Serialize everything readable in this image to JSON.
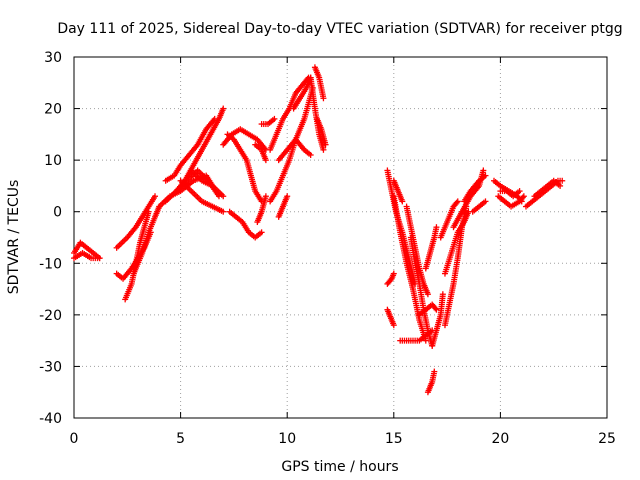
{
  "chart_data": {
    "type": "scatter",
    "title": "Day 111 of 2025, Sidereal Day-to-day VTEC variation (SDTVAR) for receiver ptgg",
    "xlabel": "GPS time / hours",
    "ylabel": "SDTVAR / TECUs",
    "xlim": [
      0,
      25
    ],
    "ylim": [
      -40,
      30
    ],
    "xticks": [
      0,
      5,
      10,
      15,
      20,
      25
    ],
    "yticks": [
      -40,
      -30,
      -20,
      -10,
      0,
      10,
      20,
      30
    ],
    "xtick_labels": [
      "0",
      "5",
      "10",
      "15",
      "20",
      "25"
    ],
    "ytick_labels": [
      "-40",
      "-30",
      "-20",
      "-10",
      "0",
      "10",
      "20",
      "30"
    ],
    "grid": true,
    "marker": "+",
    "color": "#ff0000",
    "tracks": [
      [
        [
          0.0,
          -8
        ],
        [
          0.3,
          -6
        ],
        [
          0.6,
          -7
        ],
        [
          0.9,
          -8
        ],
        [
          1.2,
          -9
        ]
      ],
      [
        [
          0.0,
          -9
        ],
        [
          0.4,
          -8
        ],
        [
          0.8,
          -9
        ],
        [
          1.2,
          -9
        ]
      ],
      [
        [
          2.0,
          -7
        ],
        [
          2.5,
          -5
        ],
        [
          2.9,
          -3
        ],
        [
          3.2,
          -1
        ],
        [
          3.5,
          1
        ],
        [
          3.8,
          3
        ]
      ],
      [
        [
          2.0,
          -12
        ],
        [
          2.3,
          -13
        ],
        [
          2.7,
          -11
        ],
        [
          3.0,
          -9
        ],
        [
          3.3,
          -7
        ],
        [
          3.6,
          -4
        ]
      ],
      [
        [
          2.4,
          -17
        ],
        [
          2.7,
          -14
        ],
        [
          2.9,
          -10
        ],
        [
          3.1,
          -6
        ],
        [
          3.3,
          -3
        ],
        [
          3.5,
          0
        ]
      ],
      [
        [
          2.8,
          -12
        ],
        [
          3.2,
          -8
        ],
        [
          3.5,
          -4
        ],
        [
          3.8,
          -1
        ],
        [
          4.0,
          1
        ]
      ],
      [
        [
          4.3,
          6
        ],
        [
          4.7,
          7
        ],
        [
          5.0,
          9
        ],
        [
          5.4,
          11
        ],
        [
          5.8,
          13
        ],
        [
          6.2,
          16
        ],
        [
          6.6,
          18
        ]
      ],
      [
        [
          4.8,
          4
        ],
        [
          5.2,
          6
        ],
        [
          5.6,
          9
        ],
        [
          6.0,
          12
        ],
        [
          6.4,
          15
        ],
        [
          6.8,
          18
        ],
        [
          7.0,
          20
        ]
      ],
      [
        [
          4.0,
          1
        ],
        [
          4.5,
          3
        ],
        [
          5.0,
          4
        ],
        [
          5.6,
          6
        ],
        [
          6.2,
          7
        ],
        [
          6.5,
          5
        ]
      ],
      [
        [
          4.3,
          2
        ],
        [
          4.8,
          4
        ],
        [
          5.3,
          6
        ],
        [
          5.8,
          8
        ],
        [
          6.3,
          6
        ],
        [
          6.8,
          3
        ]
      ],
      [
        [
          5.0,
          6
        ],
        [
          5.5,
          4
        ],
        [
          6.0,
          2
        ],
        [
          6.5,
          1
        ],
        [
          7.0,
          0
        ]
      ],
      [
        [
          5.5,
          8
        ],
        [
          6.0,
          6
        ],
        [
          6.5,
          5
        ],
        [
          7.0,
          3
        ]
      ],
      [
        [
          7.2,
          15
        ],
        [
          7.5,
          14
        ],
        [
          7.8,
          12
        ],
        [
          8.1,
          10
        ],
        [
          8.3,
          7
        ],
        [
          8.5,
          4
        ],
        [
          8.8,
          2
        ]
      ],
      [
        [
          7.0,
          13
        ],
        [
          7.4,
          15
        ],
        [
          7.8,
          16
        ],
        [
          8.2,
          15
        ],
        [
          8.6,
          14
        ],
        [
          9.0,
          12
        ]
      ],
      [
        [
          7.3,
          0
        ],
        [
          7.6,
          -1
        ],
        [
          7.9,
          -2
        ],
        [
          8.2,
          -4
        ],
        [
          8.5,
          -5
        ],
        [
          8.8,
          -4
        ]
      ],
      [
        [
          8.8,
          17
        ],
        [
          9.1,
          17
        ],
        [
          9.4,
          18
        ]
      ],
      [
        [
          8.5,
          13
        ],
        [
          8.8,
          12
        ],
        [
          9.0,
          10
        ]
      ],
      [
        [
          9.2,
          2
        ],
        [
          9.5,
          4
        ],
        [
          9.8,
          7
        ],
        [
          10.1,
          10
        ],
        [
          10.4,
          14
        ],
        [
          10.8,
          18
        ],
        [
          11.2,
          24
        ]
      ],
      [
        [
          9.2,
          12
        ],
        [
          9.5,
          15
        ],
        [
          9.8,
          18
        ],
        [
          10.1,
          20
        ],
        [
          10.4,
          23
        ],
        [
          10.8,
          25
        ],
        [
          11.0,
          26
        ]
      ],
      [
        [
          9.6,
          10
        ],
        [
          10.0,
          12
        ],
        [
          10.4,
          14
        ],
        [
          10.8,
          12
        ],
        [
          11.1,
          11
        ]
      ],
      [
        [
          10.3,
          20
        ],
        [
          10.6,
          22
        ],
        [
          10.9,
          24
        ],
        [
          11.1,
          26
        ]
      ],
      [
        [
          11.1,
          26
        ],
        [
          11.3,
          20
        ],
        [
          11.5,
          15
        ],
        [
          11.7,
          12
        ]
      ],
      [
        [
          11.3,
          28
        ],
        [
          11.5,
          26
        ],
        [
          11.7,
          22
        ]
      ],
      [
        [
          11.4,
          18
        ],
        [
          11.6,
          16
        ],
        [
          11.8,
          13
        ]
      ],
      [
        [
          9.0,
          3
        ],
        [
          8.8,
          0
        ],
        [
          8.6,
          -2
        ]
      ],
      [
        [
          9.6,
          -1
        ],
        [
          9.8,
          1
        ],
        [
          10.0,
          3
        ]
      ],
      [
        [
          14.7,
          8
        ],
        [
          14.9,
          4
        ],
        [
          15.1,
          0
        ],
        [
          15.4,
          -4
        ],
        [
          15.7,
          -9
        ],
        [
          16.0,
          -14
        ]
      ],
      [
        [
          14.7,
          -14
        ],
        [
          14.9,
          -13
        ],
        [
          15.0,
          -12
        ]
      ],
      [
        [
          14.7,
          -19
        ],
        [
          14.9,
          -21
        ],
        [
          15.0,
          -22
        ]
      ],
      [
        [
          15.0,
          3
        ],
        [
          15.3,
          -4
        ],
        [
          15.6,
          -10
        ],
        [
          15.9,
          -15
        ],
        [
          16.2,
          -21
        ],
        [
          16.5,
          -25
        ]
      ],
      [
        [
          15.3,
          -25
        ],
        [
          15.6,
          -25
        ],
        [
          15.9,
          -25
        ],
        [
          16.2,
          -25
        ],
        [
          16.5,
          -24
        ],
        [
          16.8,
          -23
        ]
      ],
      [
        [
          15.0,
          6
        ],
        [
          15.2,
          4
        ],
        [
          15.4,
          2
        ]
      ],
      [
        [
          15.6,
          1
        ],
        [
          15.8,
          -3
        ],
        [
          16.0,
          -7
        ],
        [
          16.2,
          -11
        ],
        [
          16.4,
          -14
        ],
        [
          16.6,
          -16
        ]
      ],
      [
        [
          15.8,
          -5
        ],
        [
          16.0,
          -10
        ],
        [
          16.2,
          -14
        ],
        [
          16.4,
          -19
        ],
        [
          16.6,
          -23
        ],
        [
          16.8,
          -26
        ]
      ],
      [
        [
          16.2,
          -20
        ],
        [
          16.5,
          -19
        ],
        [
          16.8,
          -18
        ],
        [
          17.0,
          -19
        ]
      ],
      [
        [
          16.5,
          -11
        ],
        [
          16.7,
          -8
        ],
        [
          16.9,
          -5
        ],
        [
          17.0,
          -3
        ]
      ],
      [
        [
          16.6,
          -35
        ],
        [
          16.8,
          -33
        ],
        [
          16.9,
          -31
        ]
      ],
      [
        [
          16.8,
          -26
        ],
        [
          17.0,
          -23
        ],
        [
          17.2,
          -20
        ],
        [
          17.3,
          -16
        ]
      ],
      [
        [
          17.4,
          -22
        ],
        [
          17.6,
          -18
        ],
        [
          17.8,
          -14
        ],
        [
          18.0,
          -9
        ],
        [
          18.2,
          -3
        ],
        [
          18.4,
          1
        ]
      ],
      [
        [
          17.4,
          -12
        ],
        [
          17.7,
          -8
        ],
        [
          18.0,
          -4
        ],
        [
          18.3,
          -2
        ],
        [
          18.5,
          0
        ]
      ],
      [
        [
          17.2,
          -5
        ],
        [
          17.5,
          -2
        ],
        [
          17.8,
          1
        ],
        [
          18.0,
          2
        ]
      ],
      [
        [
          17.8,
          -3
        ],
        [
          18.2,
          0
        ],
        [
          18.6,
          3
        ],
        [
          19.0,
          5
        ],
        [
          19.2,
          8
        ]
      ],
      [
        [
          18.3,
          2
        ],
        [
          18.6,
          4
        ],
        [
          19.0,
          6
        ],
        [
          19.3,
          7
        ]
      ],
      [
        [
          18.7,
          0
        ],
        [
          19.0,
          1
        ],
        [
          19.3,
          2
        ]
      ],
      [
        [
          19.7,
          6
        ],
        [
          20.0,
          5
        ],
        [
          20.4,
          4
        ],
        [
          20.8,
          3
        ],
        [
          21.0,
          2
        ]
      ],
      [
        [
          19.9,
          3
        ],
        [
          20.2,
          2
        ],
        [
          20.5,
          1
        ],
        [
          20.9,
          2
        ],
        [
          21.1,
          3
        ]
      ],
      [
        [
          20.0,
          4
        ],
        [
          20.3,
          4
        ],
        [
          20.6,
          3
        ],
        [
          20.9,
          4
        ]
      ],
      [
        [
          21.2,
          1
        ],
        [
          21.5,
          2
        ],
        [
          21.8,
          3
        ],
        [
          22.1,
          4
        ],
        [
          22.4,
          5
        ],
        [
          22.7,
          6
        ],
        [
          22.9,
          6
        ]
      ],
      [
        [
          21.6,
          3
        ],
        [
          21.9,
          4
        ],
        [
          22.2,
          5
        ],
        [
          22.5,
          6
        ],
        [
          22.8,
          5
        ]
      ]
    ]
  }
}
